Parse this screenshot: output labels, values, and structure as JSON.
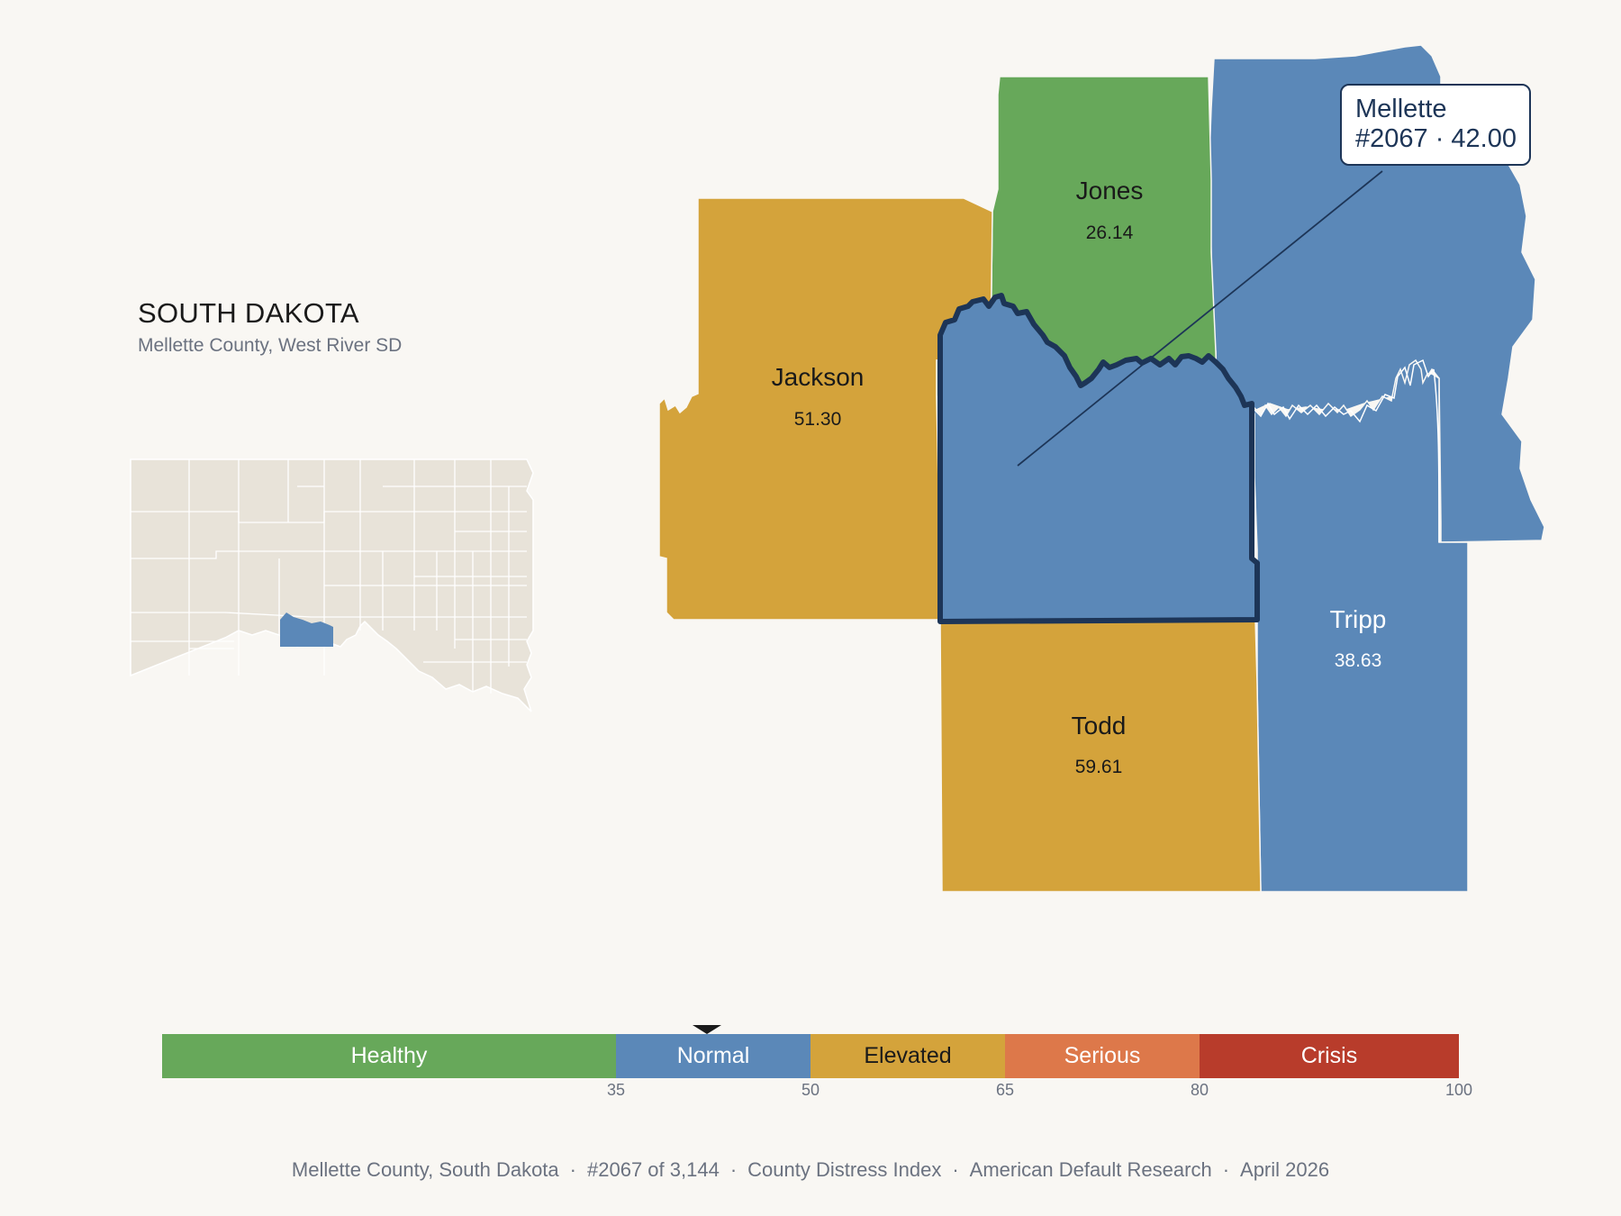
{
  "header": {
    "state": "SOUTH DAKOTA",
    "subtitle": "Mellette County, West River SD"
  },
  "callout": {
    "name": "Mellette",
    "detail": "#2067 · 42.00"
  },
  "counties": [
    {
      "id": "jackson",
      "name": "Jackson",
      "value": "51.30",
      "fill": "#d4a33b",
      "text": "#1a1a1a"
    },
    {
      "id": "jones",
      "name": "Jones",
      "value": "26.14",
      "fill": "#67a85a",
      "text": "#1a1a1a"
    },
    {
      "id": "tripp",
      "name": "Tripp",
      "value": "38.63",
      "fill": "#5b88b8",
      "text": "#ffffff"
    },
    {
      "id": "todd",
      "name": "Todd",
      "value": "59.61",
      "fill": "#d4a33b",
      "text": "#1a1a1a"
    },
    {
      "id": "mellette",
      "name": "Mellette",
      "value": "42.00",
      "fill": "#5b88b8",
      "text": "#ffffff"
    }
  ],
  "legend": {
    "segments": [
      {
        "label": "Healthy",
        "from": 0,
        "to": 35,
        "color": "#67a85a",
        "text": "#ffffff"
      },
      {
        "label": "Normal",
        "from": 35,
        "to": 50,
        "color": "#5b88b8",
        "text": "#ffffff"
      },
      {
        "label": "Elevated",
        "from": 50,
        "to": 65,
        "color": "#d4a33b",
        "text": "#1a1a1a"
      },
      {
        "label": "Serious",
        "from": 65,
        "to": 80,
        "color": "#dd784a",
        "text": "#ffffff"
      },
      {
        "label": "Crisis",
        "from": 80,
        "to": 100,
        "color": "#b83c2b",
        "text": "#ffffff"
      }
    ],
    "ticks": [
      "35",
      "50",
      "65",
      "80",
      "100"
    ],
    "marker_value": 42.0
  },
  "footer": {
    "county": "Mellette County, South Dakota",
    "rank": "#2067 of 3,144",
    "index": "County Distress Index",
    "org": "American Default Research",
    "date": "April 2026"
  },
  "colors": {
    "background": "#f9f7f3",
    "highlight_outline": "#1d3557",
    "inset_fill": "#e8e3d9"
  }
}
